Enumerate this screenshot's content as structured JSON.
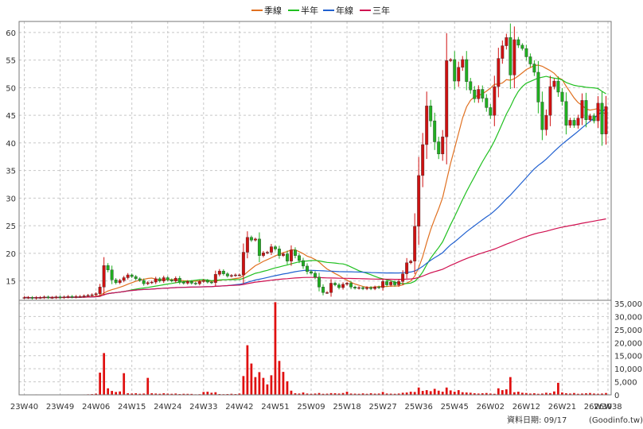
{
  "legend": [
    {
      "label": "季線",
      "color": "#e07020"
    },
    {
      "label": "半年",
      "color": "#20c020"
    },
    {
      "label": "年線",
      "color": "#2060d0"
    },
    {
      "label": "三年",
      "color": "#d01050"
    }
  ],
  "footer": {
    "date_label": "資料日期: 09/17",
    "source_label": "(Goodinfo.tw)"
  },
  "chart_data": [
    {
      "type": "candlestick",
      "title": "",
      "ylim": [
        11.5,
        62
      ],
      "y_ticks": [
        15,
        20,
        25,
        30,
        35,
        40,
        45,
        50,
        55,
        60
      ],
      "x_ticks": [
        "23W40",
        "23W49",
        "24W06",
        "24W15",
        "24W24",
        "24W33",
        "24W42",
        "24W51",
        "25W09",
        "25W18",
        "25W27",
        "25W36",
        "25W45",
        "26W02",
        "26W12",
        "26W21",
        "26W30",
        "26W38"
      ],
      "grid": true,
      "colors": {
        "up": "#d01010",
        "down": "#20b020"
      },
      "close": [
        12.0,
        12.0,
        11.9,
        12.0,
        12.0,
        12.1,
        12.0,
        12.0,
        12.1,
        12.0,
        12.1,
        12.2,
        12.1,
        12.2,
        12.2,
        12.3,
        12.4,
        12.5,
        12.7,
        13.9,
        17.8,
        17.0,
        15.2,
        14.7,
        15.1,
        15.6,
        16.1,
        15.8,
        15.4,
        15.1,
        14.5,
        14.7,
        14.8,
        15.4,
        15.0,
        15.6,
        15.2,
        15.0,
        15.5,
        14.8,
        14.6,
        14.9,
        14.6,
        14.5,
        14.9,
        15.1,
        14.8,
        14.7,
        16.2,
        16.8,
        16.3,
        15.9,
        16.0,
        16.1,
        16.1,
        20.2,
        22.9,
        22.4,
        22.6,
        19.6,
        20.1,
        20.2,
        21.2,
        20.8,
        19.6,
        19.9,
        18.6,
        20.6,
        19.6,
        18.7,
        17.7,
        16.7,
        16.4,
        15.7,
        13.9,
        12.9,
        12.9,
        14.6,
        14.3,
        13.8,
        14.4,
        14.6,
        13.9,
        13.7,
        13.8,
        13.6,
        13.8,
        13.6,
        13.9,
        13.8,
        14.9,
        14.3,
        14.8,
        14.3,
        14.9,
        16.3,
        18.3,
        18.6,
        24.9,
        34.1,
        39.7,
        46.7,
        44.0,
        40.2,
        38.0,
        41.1,
        54.9,
        55.1,
        51.2,
        53.7,
        55.1,
        51.1,
        49.6,
        48.0,
        49.7,
        48.1,
        46.4,
        45.0,
        50.2,
        55.3,
        57.6,
        59.1,
        52.3,
        58.7,
        57.7,
        57.1,
        55.6,
        54.3,
        52.8,
        47.4,
        42.4,
        45.0,
        50.2,
        51.2,
        49.2,
        47.5,
        43.2,
        44.1,
        43.2,
        44.5,
        47.7,
        44.2,
        44.9,
        44.0,
        47.2,
        41.6,
        46.6
      ],
      "volume": [
        120,
        150,
        140,
        160,
        130,
        120,
        150,
        140,
        100,
        120,
        90,
        160,
        110,
        100,
        140,
        160,
        200,
        280,
        450,
        8500,
        16000,
        2500,
        1500,
        1100,
        1300,
        8300,
        600,
        500,
        600,
        400,
        500,
        6500,
        600,
        500,
        400,
        600,
        450,
        400,
        500,
        300,
        400,
        380,
        350,
        200,
        250,
        1100,
        1200,
        800,
        1000,
        300,
        250,
        300,
        400,
        300,
        500,
        7200,
        19000,
        12000,
        6800,
        8700,
        6500,
        4000,
        7500,
        35500,
        13000,
        8800,
        5200,
        1600,
        600,
        500,
        900,
        500,
        400,
        500,
        700,
        400,
        450,
        650,
        600,
        500,
        700,
        1200,
        500,
        450,
        400,
        550,
        400,
        600,
        450,
        500,
        1100,
        500,
        450,
        400,
        500,
        800,
        900,
        1200,
        1100,
        2800,
        1500,
        1800,
        1400,
        2300,
        1600,
        1200,
        2800,
        1700,
        1200,
        1800,
        1000,
        900,
        800,
        600,
        500,
        600,
        700,
        500,
        400,
        2500,
        1800,
        2100,
        6800,
        1000,
        1200,
        800,
        700,
        500,
        600,
        400,
        500,
        800,
        650,
        1300,
        4600,
        900,
        600,
        500,
        700,
        400,
        500,
        600,
        700,
        500,
        400,
        500,
        700
      ],
      "volume_axis": {
        "ylim": [
          0,
          35000
        ],
        "ticks": [
          "0",
          "5,000",
          "10,000",
          "15,000",
          "20,000",
          "25,000",
          "30,000",
          "35,000"
        ]
      }
    }
  ]
}
